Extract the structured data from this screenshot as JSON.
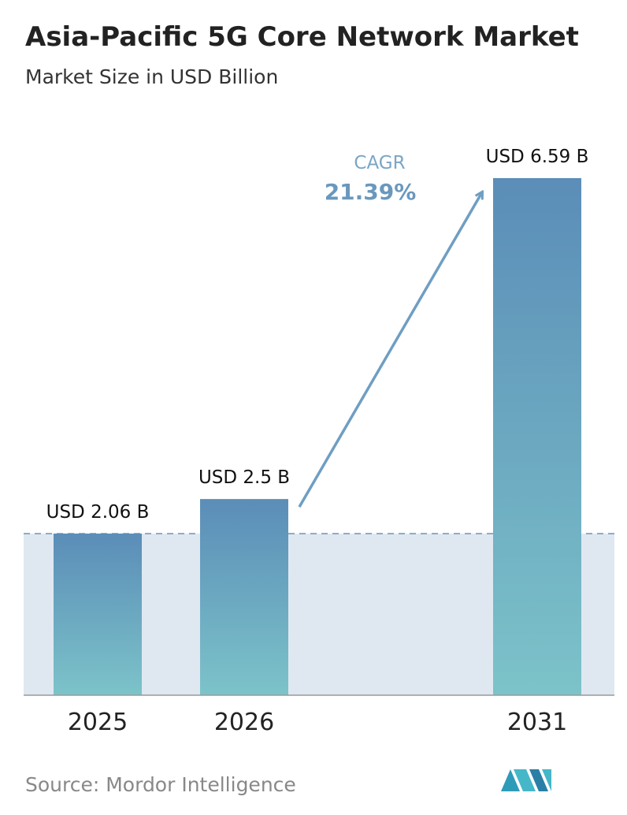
{
  "chart_data": {
    "type": "bar",
    "title": "Asia-Pacific 5G Core Network Market",
    "subtitle": "Market Size in USD Billion",
    "categories": [
      "2025",
      "2026",
      "2031"
    ],
    "values": [
      2.06,
      2.5,
      6.59
    ],
    "value_labels": [
      "USD 2.06 B",
      "USD 2.5 B",
      "USD 6.59 B"
    ],
    "annotations": [
      "CAGR",
      "21.39%"
    ],
    "source": "Source: Mordor Intelligence",
    "color_top": "#5b8db8",
    "color_bottom": "#7cc3c9"
  }
}
